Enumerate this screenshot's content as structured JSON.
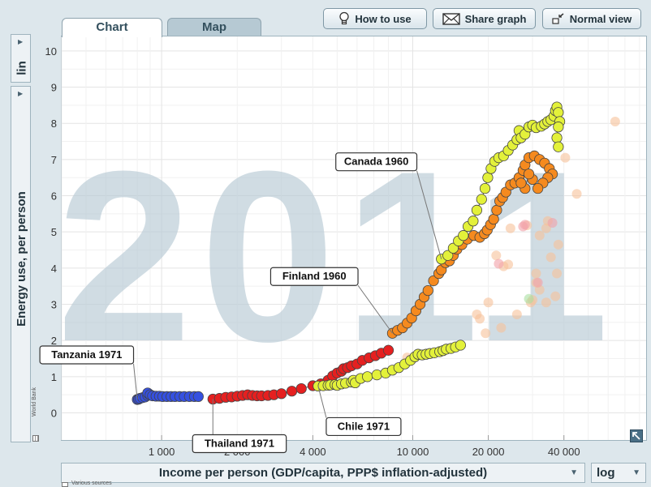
{
  "tabs": {
    "chart": "Chart",
    "map": "Map"
  },
  "toolbar": {
    "how_to_use": "How to use",
    "share_graph": "Share graph",
    "normal_view": "Normal view"
  },
  "y_scale": "lin",
  "x_scale": "log",
  "y_axis_label": "Energy use, per person",
  "x_axis_label": "Income per person (GDP/capita, PPP$ inflation-adjusted)",
  "source_side": "World Bank",
  "source_note": "Various sources",
  "year": "2011",
  "chart_data": {
    "type": "scatter",
    "year_watermark": "2011",
    "xlabel": "Income per person (GDP/capita, PPP$ inflation-adjusted)",
    "ylabel": "Energy use, per person",
    "xscale": "log",
    "yscale": "linear",
    "xlim": [
      400,
      85000
    ],
    "ylim": [
      -0.75,
      10.4
    ],
    "xticks": [
      1000,
      2000,
      4000,
      10000,
      20000,
      40000
    ],
    "xtick_labels": [
      "1 000",
      "2 000",
      "4 000",
      "10 000",
      "20 000",
      "40 000"
    ],
    "yticks": [
      0,
      1,
      2,
      3,
      4,
      5,
      6,
      7,
      8,
      9,
      10
    ],
    "grid": true,
    "series": [
      {
        "name": "Tanzania",
        "color": "#3550e0",
        "label": "Tanzania 1971",
        "points": [
          [
            800,
            0.37
          ],
          [
            810,
            0.38
          ],
          [
            820,
            0.4
          ],
          [
            840,
            0.42
          ],
          [
            860,
            0.44
          ],
          [
            880,
            0.48
          ],
          [
            890,
            0.52
          ],
          [
            880,
            0.55
          ],
          [
            900,
            0.5
          ],
          [
            920,
            0.47
          ],
          [
            950,
            0.46
          ],
          [
            980,
            0.46
          ],
          [
            1010,
            0.45
          ],
          [
            1050,
            0.45
          ],
          [
            1090,
            0.45
          ],
          [
            1130,
            0.45
          ],
          [
            1180,
            0.45
          ],
          [
            1230,
            0.45
          ],
          [
            1290,
            0.45
          ],
          [
            1350,
            0.45
          ],
          [
            1400,
            0.45
          ]
        ]
      },
      {
        "name": "Thailand",
        "color": "#e52020",
        "label": "Thailand 1971",
        "points": [
          [
            1600,
            0.38
          ],
          [
            1700,
            0.4
          ],
          [
            1800,
            0.43
          ],
          [
            1900,
            0.44
          ],
          [
            2000,
            0.46
          ],
          [
            2100,
            0.48
          ],
          [
            2200,
            0.5
          ],
          [
            2300,
            0.48
          ],
          [
            2400,
            0.47
          ],
          [
            2500,
            0.47
          ],
          [
            2650,
            0.48
          ],
          [
            2800,
            0.5
          ],
          [
            3000,
            0.53
          ],
          [
            3300,
            0.6
          ],
          [
            3600,
            0.67
          ],
          [
            4000,
            0.75
          ],
          [
            4300,
            0.8
          ],
          [
            4600,
            0.9
          ],
          [
            4800,
            1.02
          ],
          [
            5000,
            1.1
          ],
          [
            5200,
            1.15
          ],
          [
            5300,
            1.22
          ],
          [
            5500,
            1.25
          ],
          [
            5700,
            1.3
          ],
          [
            6000,
            1.35
          ],
          [
            6300,
            1.45
          ],
          [
            6700,
            1.52
          ],
          [
            7100,
            1.58
          ],
          [
            7500,
            1.65
          ],
          [
            8000,
            1.73
          ]
        ]
      },
      {
        "name": "Chile",
        "color": "#e3f13a",
        "label": "Chile 1971",
        "points": [
          [
            4200,
            0.74
          ],
          [
            4400,
            0.75
          ],
          [
            4600,
            0.76
          ],
          [
            4700,
            0.77
          ],
          [
            4900,
            0.78
          ],
          [
            5000,
            0.76
          ],
          [
            5200,
            0.8
          ],
          [
            5400,
            0.82
          ],
          [
            5700,
            0.85
          ],
          [
            5800,
            0.9
          ],
          [
            5900,
            0.83
          ],
          [
            6200,
            0.95
          ],
          [
            6600,
            1.0
          ],
          [
            7200,
            1.05
          ],
          [
            7800,
            1.1
          ],
          [
            8300,
            1.18
          ],
          [
            8800,
            1.25
          ],
          [
            9300,
            1.35
          ],
          [
            9800,
            1.45
          ],
          [
            10200,
            1.55
          ],
          [
            10500,
            1.62
          ],
          [
            10900,
            1.6
          ],
          [
            11300,
            1.62
          ],
          [
            11700,
            1.64
          ],
          [
            12200,
            1.66
          ],
          [
            12800,
            1.69
          ],
          [
            13200,
            1.72
          ],
          [
            13600,
            1.76
          ],
          [
            14200,
            1.78
          ],
          [
            14800,
            1.82
          ],
          [
            15500,
            1.87
          ]
        ]
      },
      {
        "name": "Finland",
        "color": "#f58a1f",
        "label": "Finland 1960",
        "points": [
          [
            8300,
            2.2
          ],
          [
            8700,
            2.28
          ],
          [
            9100,
            2.35
          ],
          [
            9500,
            2.48
          ],
          [
            9900,
            2.62
          ],
          [
            10300,
            2.82
          ],
          [
            10700,
            3.0
          ],
          [
            11100,
            3.2
          ],
          [
            11500,
            3.38
          ],
          [
            12100,
            3.65
          ],
          [
            12700,
            3.85
          ],
          [
            13000,
            3.95
          ],
          [
            13500,
            4.15
          ],
          [
            14000,
            4.2
          ],
          [
            14500,
            4.35
          ],
          [
            15000,
            4.52
          ],
          [
            15700,
            4.65
          ],
          [
            16500,
            4.8
          ],
          [
            17500,
            4.9
          ],
          [
            18500,
            4.85
          ],
          [
            19300,
            4.95
          ],
          [
            19800,
            5.05
          ],
          [
            20400,
            5.2
          ],
          [
            21000,
            5.35
          ],
          [
            21600,
            5.6
          ],
          [
            22200,
            5.85
          ],
          [
            22800,
            5.95
          ],
          [
            23500,
            6.1
          ],
          [
            24500,
            6.3
          ],
          [
            25500,
            6.35
          ],
          [
            26500,
            6.5
          ],
          [
            27500,
            6.7
          ],
          [
            28000,
            6.85
          ],
          [
            29000,
            7.05
          ],
          [
            30500,
            7.1
          ],
          [
            32000,
            7.0
          ],
          [
            33500,
            6.9
          ],
          [
            35000,
            6.75
          ],
          [
            36000,
            6.6
          ],
          [
            34500,
            6.5
          ],
          [
            33000,
            6.35
          ],
          [
            31500,
            6.2
          ],
          [
            30000,
            6.45
          ],
          [
            29000,
            6.6
          ],
          [
            28000,
            6.2
          ],
          [
            27000,
            6.35
          ]
        ]
      },
      {
        "name": "Canada",
        "color": "#e3f13a",
        "label": "Canada 1960",
        "points": [
          [
            13000,
            4.25
          ],
          [
            13800,
            4.35
          ],
          [
            14500,
            4.55
          ],
          [
            15200,
            4.75
          ],
          [
            15900,
            4.9
          ],
          [
            16600,
            5.15
          ],
          [
            17400,
            5.3
          ],
          [
            18000,
            5.6
          ],
          [
            18800,
            5.9
          ],
          [
            19400,
            6.2
          ],
          [
            19900,
            6.5
          ],
          [
            20500,
            6.75
          ],
          [
            21200,
            6.95
          ],
          [
            22000,
            7.05
          ],
          [
            23000,
            7.1
          ],
          [
            24000,
            7.25
          ],
          [
            25000,
            7.4
          ],
          [
            26000,
            7.55
          ],
          [
            26500,
            7.8
          ],
          [
            27000,
            7.6
          ],
          [
            28000,
            7.7
          ],
          [
            29000,
            7.9
          ],
          [
            30000,
            7.95
          ],
          [
            31000,
            7.88
          ],
          [
            32500,
            7.92
          ],
          [
            33500,
            7.98
          ],
          [
            34500,
            8.05
          ],
          [
            35500,
            8.1
          ],
          [
            36500,
            8.2
          ],
          [
            37000,
            8.35
          ],
          [
            37500,
            8.45
          ],
          [
            38000,
            8.3
          ],
          [
            38500,
            8.05
          ],
          [
            38000,
            7.9
          ],
          [
            37500,
            7.6
          ],
          [
            38000,
            7.35
          ]
        ]
      },
      {
        "name": "Other countries (faded)",
        "color": "#f6c29a",
        "points": [
          [
            64000,
            8.05
          ],
          [
            45000,
            6.05
          ],
          [
            40500,
            7.05
          ],
          [
            38000,
            4.65
          ],
          [
            37500,
            3.85
          ],
          [
            35500,
            4.3
          ],
          [
            34000,
            5.1
          ],
          [
            34500,
            5.3
          ],
          [
            32000,
            3.4
          ],
          [
            31000,
            3.85
          ],
          [
            29500,
            3.05
          ],
          [
            34000,
            3.05
          ],
          [
            37000,
            3.22
          ],
          [
            24000,
            4.1
          ],
          [
            23000,
            4.05
          ],
          [
            21500,
            4.35
          ],
          [
            22500,
            2.35
          ],
          [
            19500,
            2.2
          ],
          [
            20000,
            3.05
          ],
          [
            18500,
            2.6
          ],
          [
            18000,
            2.72
          ],
          [
            32000,
            4.9
          ],
          [
            26000,
            2.72
          ],
          [
            28500,
            5.18
          ],
          [
            24500,
            5.1
          ],
          [
            9500,
            1.53
          ],
          [
            31000,
            3.6
          ],
          [
            30000,
            3.12
          ]
        ]
      },
      {
        "name": "Other countries (faded, pink)",
        "color": "#f2a0a8",
        "points": [
          [
            27500,
            5.15
          ],
          [
            36000,
            5.25
          ],
          [
            28000,
            5.2
          ],
          [
            22000,
            4.12
          ],
          [
            31500,
            3.6
          ]
        ]
      },
      {
        "name": "Other countries (faded, green)",
        "color": "#a8e0a0",
        "points": [
          [
            29000,
            3.15
          ]
        ]
      }
    ]
  }
}
